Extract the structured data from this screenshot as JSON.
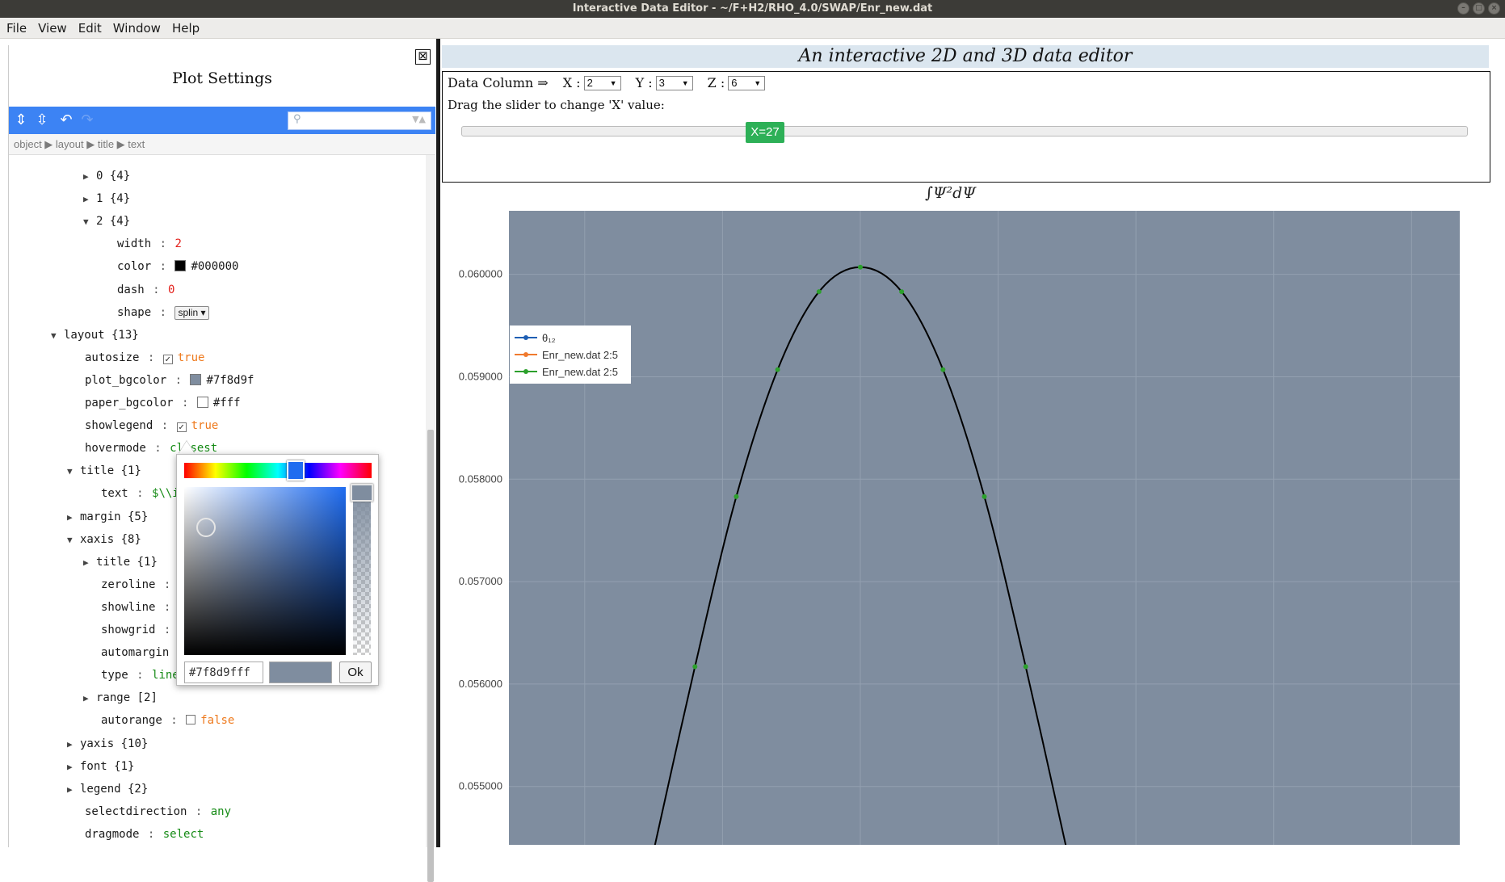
{
  "window": {
    "title": "Interactive Data Editor - ~/F+H2/RHO_4.0/SWAP/Enr_new.dat"
  },
  "menu": [
    "File",
    "View",
    "Edit",
    "Window",
    "Help"
  ],
  "left_panel": {
    "title": "Plot Settings",
    "close_label": "⊠",
    "breadcrumb": "object ▶ layout ▶ title ▶ text",
    "tree": [
      {
        "indent": 0,
        "arrow": "▶",
        "key": "0",
        "value": "{4}",
        "vclass": "v-dark",
        "kind": "node"
      },
      {
        "indent": 0,
        "arrow": "▶",
        "key": "1",
        "value": "{4}",
        "vclass": "v-dark",
        "kind": "node"
      },
      {
        "indent": 0,
        "arrow": "▼",
        "key": "2",
        "value": "{4}",
        "vclass": "v-dark",
        "kind": "node"
      },
      {
        "indent": 1,
        "key": "width",
        "value": "2",
        "vclass": "v-red",
        "kind": "leaf"
      },
      {
        "indent": 1,
        "key": "color",
        "value": "#000000",
        "vclass": "v-dark",
        "kind": "color",
        "swatch": "#000000"
      },
      {
        "indent": 1,
        "key": "dash",
        "value": "0",
        "vclass": "v-red",
        "kind": "leaf"
      },
      {
        "indent": 1,
        "key": "shape",
        "value": "splin ▾",
        "vclass": "v-dark",
        "kind": "select"
      },
      {
        "indent": -2,
        "arrow": "▼",
        "key": "layout",
        "value": "{13}",
        "vclass": "v-dark",
        "kind": "node"
      },
      {
        "indent": -1,
        "key": "autosize",
        "value": "true",
        "vclass": "v-orange",
        "kind": "check",
        "checked": true
      },
      {
        "indent": -1,
        "key": "plot_bgcolor",
        "value": "#7f8d9f",
        "vclass": "v-dark",
        "kind": "color",
        "swatch": "#7f8d9f"
      },
      {
        "indent": -1,
        "key": "paper_bgcolor",
        "value": "#fff",
        "vclass": "v-dark",
        "kind": "color",
        "swatch": "#ffffff"
      },
      {
        "indent": -1,
        "key": "showlegend",
        "value": "true",
        "vclass": "v-orange",
        "kind": "check",
        "checked": true
      },
      {
        "indent": -1,
        "key": "hovermode",
        "value": "closest",
        "vclass": "v-green",
        "kind": "leaf"
      },
      {
        "indent": -1,
        "arrow": "▼",
        "key": "title",
        "value": "{1}",
        "vclass": "v-dark",
        "kind": "node"
      },
      {
        "indent": 0,
        "key": "text",
        "value": "$\\\\int\\\\Psi^2 d\\\\Psi$",
        "vclass": "v-green",
        "kind": "leaf"
      },
      {
        "indent": -1,
        "arrow": "▶",
        "key": "margin",
        "value": "{5}",
        "vclass": "v-dark",
        "kind": "node"
      },
      {
        "indent": -1,
        "arrow": "▼",
        "key": "xaxis",
        "value": "{8}",
        "vclass": "v-dark",
        "kind": "node"
      },
      {
        "indent": 0,
        "arrow": "▶",
        "key": "title",
        "value": "{1}",
        "vclass": "v-dark",
        "kind": "node"
      },
      {
        "indent": 0,
        "key": "zeroline",
        "value": "false",
        "vclass": "v-orange",
        "kind": "check",
        "checked": false
      },
      {
        "indent": 0,
        "key": "showline",
        "value": "true",
        "vclass": "v-orange",
        "kind": "check",
        "checked": true
      },
      {
        "indent": 0,
        "key": "showgrid",
        "value": "true",
        "vclass": "v-orange",
        "kind": "check",
        "checked": true
      },
      {
        "indent": 0,
        "key": "automargin",
        "value": "true",
        "vclass": "v-orange",
        "kind": "check",
        "checked": true
      },
      {
        "indent": 0,
        "key": "type",
        "value": "linear",
        "vclass": "v-green",
        "kind": "leaf"
      },
      {
        "indent": 0,
        "arrow": "▶",
        "key": "range",
        "value": "[2]",
        "vclass": "v-dark",
        "kind": "node"
      },
      {
        "indent": 0,
        "key": "autorange",
        "value": "false",
        "vclass": "v-orange",
        "kind": "check",
        "checked": false
      },
      {
        "indent": -1,
        "arrow": "▶",
        "key": "yaxis",
        "value": "{10}",
        "vclass": "v-dark",
        "kind": "node"
      },
      {
        "indent": -1,
        "arrow": "▶",
        "key": "font",
        "value": "{1}",
        "vclass": "v-dark",
        "kind": "node"
      },
      {
        "indent": -1,
        "arrow": "▶",
        "key": "legend",
        "value": "{2}",
        "vclass": "v-dark",
        "kind": "node"
      },
      {
        "indent": -1,
        "key": "selectdirection",
        "value": "any",
        "vclass": "v-green",
        "kind": "leaf"
      },
      {
        "indent": -1,
        "key": "dragmode",
        "value": "select",
        "vclass": "v-green",
        "kind": "leaf"
      }
    ]
  },
  "color_picker": {
    "hex_value": "#7f8d9fff",
    "ok_label": "Ok",
    "color": "#7f8d9f"
  },
  "editor": {
    "title": "An interactive 2D and 3D data editor",
    "data_column_label": "Data Column ⇒",
    "x_label": "X :",
    "x_value": "2",
    "y_label": "Y :",
    "y_value": "3",
    "z_label": "Z :",
    "z_value": "6",
    "slider_label": "Drag the slider to change 'X' value:",
    "slider_value": "X=27"
  },
  "chart_data": {
    "type": "line",
    "title": "∫Ψ²dΨ",
    "xlim": [
      154.5,
      223.5
    ],
    "ylim": [
      0.05443,
      0.06062
    ],
    "xticks": [
      160,
      170,
      180,
      190,
      200,
      210,
      220
    ],
    "yticks": [
      0.055,
      0.056,
      0.057,
      0.058,
      0.059,
      0.06
    ],
    "ytick_labels": [
      "0.055000",
      "0.056000",
      "0.057000",
      "0.058000",
      "0.059000",
      "0.060000"
    ],
    "plot_bgcolor": "#7f8d9f",
    "grid": true,
    "legend": {
      "placement": "top-left",
      "entries": [
        {
          "name": "θ₁₂",
          "color": "#1f5fb4"
        },
        {
          "name": "Enr_new.dat 2:5",
          "color": "#f07a2e"
        },
        {
          "name": "Enr_new.dat 2:5",
          "color": "#2ca02c"
        }
      ]
    },
    "series": [
      {
        "name": "Enr_new.dat 2:5",
        "line_color": "#000000",
        "marker_color": "#2ca02c",
        "x": [
          165,
          168,
          171,
          174,
          177,
          180,
          183,
          186,
          189,
          192,
          195
        ],
        "y": [
          0.05437,
          0.05617,
          0.05783,
          0.05907,
          0.05983,
          0.06007,
          0.05983,
          0.05907,
          0.05783,
          0.05617,
          0.05437
        ],
        "marker_x": [
          168,
          171,
          174,
          177,
          180,
          183,
          186,
          189,
          192
        ]
      }
    ]
  }
}
